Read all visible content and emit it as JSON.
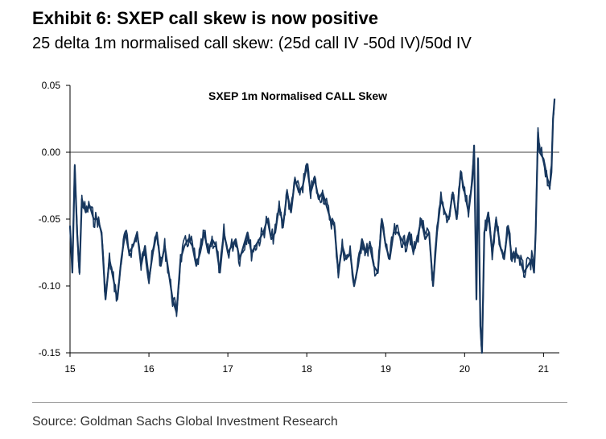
{
  "header": {
    "title": "Exhibit 6: SXEP call skew is now positive",
    "subtitle": "25 delta 1m normalised call skew: (25d call IV -50d IV)/50d IV"
  },
  "footer": {
    "source": "Source: Goldman Sachs Global Investment Research"
  },
  "chart_data": {
    "type": "line",
    "title": "SXEP 1m Normalised CALL Skew",
    "xlabel": "",
    "ylabel": "",
    "x_ticks": [
      "15",
      "16",
      "17",
      "18",
      "19",
      "20",
      "21"
    ],
    "y_ticks": [
      "0.05",
      "0.00",
      "-0.05",
      "-0.10",
      "-0.15"
    ],
    "xlim": [
      2015.0,
      2021.2
    ],
    "ylim": [
      -0.15,
      0.05
    ],
    "grid": false,
    "reference_line": 0.0,
    "line_color": "#17375e",
    "series": [
      {
        "x": [
          2015.0,
          2015.03,
          2015.06,
          2015.09,
          2015.12,
          2015.15,
          2015.2,
          2015.25,
          2015.3,
          2015.35,
          2015.4,
          2015.45,
          2015.5,
          2015.55,
          2015.6,
          2015.65,
          2015.7,
          2015.75,
          2015.8,
          2015.85,
          2015.9,
          2015.95,
          2016.0,
          2016.05,
          2016.1,
          2016.15,
          2016.2,
          2016.25,
          2016.3,
          2016.35,
          2016.4,
          2016.45,
          2016.5,
          2016.55,
          2016.6,
          2016.65,
          2016.7,
          2016.75,
          2016.8,
          2016.85,
          2016.9,
          2016.95,
          2017.0,
          2017.05,
          2017.1,
          2017.15,
          2017.2,
          2017.25,
          2017.3,
          2017.35,
          2017.4,
          2017.45,
          2017.5,
          2017.55,
          2017.6,
          2017.65,
          2017.7,
          2017.75,
          2017.8,
          2017.85,
          2017.9,
          2017.95,
          2018.0,
          2018.05,
          2018.1,
          2018.15,
          2018.2,
          2018.25,
          2018.3,
          2018.35,
          2018.4,
          2018.45,
          2018.5,
          2018.55,
          2018.6,
          2018.65,
          2018.7,
          2018.75,
          2018.8,
          2018.85,
          2018.9,
          2018.95,
          2019.0,
          2019.05,
          2019.1,
          2019.15,
          2019.2,
          2019.25,
          2019.3,
          2019.35,
          2019.4,
          2019.45,
          2019.5,
          2019.55,
          2019.6,
          2019.65,
          2019.7,
          2019.75,
          2019.8,
          2019.85,
          2019.9,
          2019.95,
          2020.0,
          2020.05,
          2020.1,
          2020.12,
          2020.15,
          2020.17,
          2020.2,
          2020.22,
          2020.25,
          2020.3,
          2020.35,
          2020.4,
          2020.45,
          2020.5,
          2020.55,
          2020.6,
          2020.65,
          2020.7,
          2020.75,
          2020.8,
          2020.85,
          2020.88,
          2020.9,
          2020.93,
          2020.95,
          2021.0,
          2021.05,
          2021.08,
          2021.1,
          2021.12,
          2021.14
        ],
        "values": [
          -0.055,
          -0.09,
          -0.01,
          -0.06,
          -0.09,
          -0.035,
          -0.045,
          -0.04,
          -0.05,
          -0.05,
          -0.06,
          -0.11,
          -0.08,
          -0.095,
          -0.11,
          -0.08,
          -0.06,
          -0.075,
          -0.07,
          -0.06,
          -0.085,
          -0.07,
          -0.095,
          -0.075,
          -0.06,
          -0.085,
          -0.07,
          -0.09,
          -0.11,
          -0.12,
          -0.08,
          -0.07,
          -0.065,
          -0.07,
          -0.085,
          -0.075,
          -0.06,
          -0.075,
          -0.065,
          -0.07,
          -0.09,
          -0.06,
          -0.075,
          -0.07,
          -0.065,
          -0.08,
          -0.07,
          -0.06,
          -0.075,
          -0.07,
          -0.065,
          -0.06,
          -0.05,
          -0.065,
          -0.06,
          -0.04,
          -0.055,
          -0.03,
          -0.045,
          -0.02,
          -0.03,
          -0.025,
          -0.01,
          -0.03,
          -0.02,
          -0.035,
          -0.03,
          -0.04,
          -0.05,
          -0.055,
          -0.09,
          -0.07,
          -0.08,
          -0.075,
          -0.1,
          -0.085,
          -0.065,
          -0.075,
          -0.07,
          -0.085,
          -0.09,
          -0.05,
          -0.07,
          -0.08,
          -0.06,
          -0.06,
          -0.065,
          -0.07,
          -0.06,
          -0.075,
          -0.065,
          -0.05,
          -0.065,
          -0.06,
          -0.1,
          -0.06,
          -0.035,
          -0.045,
          -0.05,
          -0.03,
          -0.05,
          -0.015,
          -0.03,
          -0.045,
          -0.02,
          0.005,
          -0.11,
          -0.005,
          -0.13,
          -0.15,
          -0.06,
          -0.045,
          -0.075,
          -0.05,
          -0.07,
          -0.08,
          -0.055,
          -0.08,
          -0.075,
          -0.08,
          -0.09,
          -0.085,
          -0.08,
          -0.09,
          -0.06,
          0.015,
          0.0,
          -0.005,
          -0.02,
          -0.025,
          -0.015,
          0.025,
          0.04
        ]
      }
    ]
  }
}
